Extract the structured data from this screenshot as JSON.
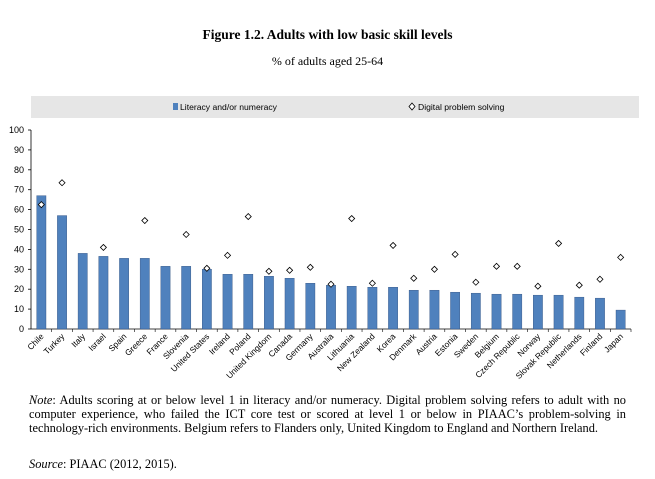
{
  "header": {
    "title": "Figure 1.2. Adults with low basic skill levels",
    "subtitle": "% of adults aged 25-64"
  },
  "footnote": {
    "note_label": "Note",
    "note_text": ": Adults scoring at or below level 1 in literacy and/or numeracy. Digital problem solving refers to adult with no computer experience, who failed the ICT core test or scored at level 1 or below in PIAAC’s problem-solving in technology-rich environments. Belgium refers to Flanders only, United Kingdom to England and Northern Ireland.",
    "source_label": "Source",
    "source_text": ": PIAAC (2012, 2015)."
  },
  "colors": {
    "bar": "#4F81BD",
    "bar_stroke": "#2F4F7F",
    "legend_bg": "#E6E6E6",
    "axis": "#000000"
  },
  "chart_data": {
    "type": "bar",
    "title": "Figure 1.2. Adults with low basic skill levels",
    "subtitle": "% of adults aged 25-64",
    "xlabel": "",
    "ylabel": "",
    "ylim": [
      0,
      100
    ],
    "yticks": [
      0,
      10,
      20,
      30,
      40,
      50,
      60,
      70,
      80,
      90,
      100
    ],
    "grid": false,
    "legend_position": "top",
    "categories": [
      "Chile",
      "Turkey",
      "Italy",
      "Israel",
      "Spain",
      "Greece",
      "France",
      "Slovenia",
      "United States",
      "Ireland",
      "Poland",
      "United Kingdom",
      "Canada",
      "Germany",
      "Australia",
      "Lithuania",
      "New Zealand",
      "Korea",
      "Denmark",
      "Austria",
      "Estonia",
      "Sweden",
      "Belgium",
      "Czech Republic",
      "Norway",
      "Slovak Republic",
      "Netherlands",
      "Finland",
      "Japan"
    ],
    "series": [
      {
        "name": "Literacy and/or numeracy",
        "type": "bar",
        "values": [
          67,
          57,
          38,
          36.5,
          35.5,
          35.5,
          31.5,
          31.5,
          30,
          27.5,
          27.5,
          26.5,
          25.5,
          23,
          22,
          21.5,
          21,
          21,
          19.5,
          19.5,
          18.5,
          18,
          17.5,
          17.5,
          17,
          17,
          16,
          15.5,
          9.5
        ]
      },
      {
        "name": "Digital problem solving",
        "type": "scatter",
        "marker": "diamond",
        "values": [
          62.5,
          73.5,
          null,
          41,
          null,
          54.5,
          null,
          47.5,
          30.5,
          37,
          56.5,
          29,
          29.5,
          31,
          22.5,
          55.5,
          23,
          42,
          25.5,
          30,
          37.5,
          23.5,
          31.5,
          31.5,
          21.5,
          43,
          22,
          25,
          36
        ]
      }
    ]
  }
}
